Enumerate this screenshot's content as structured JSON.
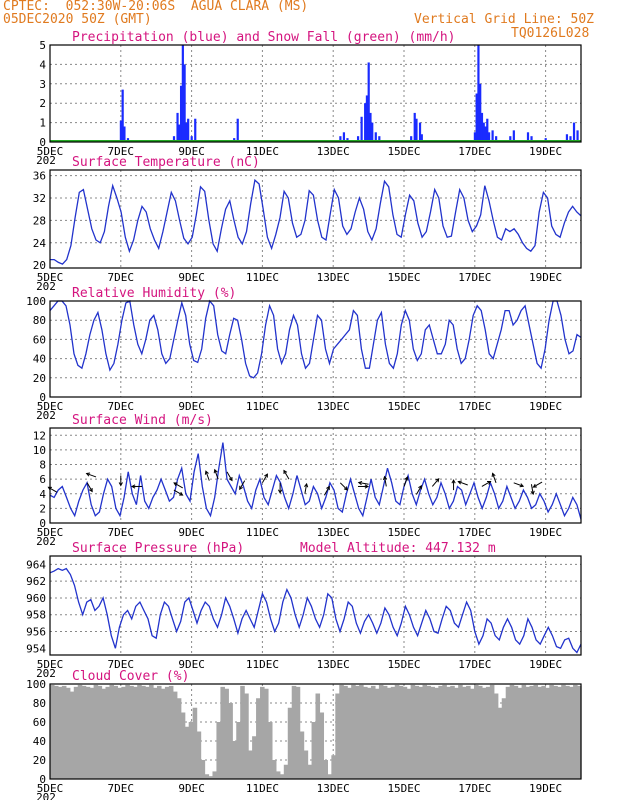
{
  "header": {
    "line1": "CPTEC:  052:30W-20:06S  AGUA CLARA (MS)",
    "line2": "05DEC2020 50Z (GMT)",
    "grid_note": "Vertical Grid Line: 50Z",
    "run_code": "TQ0126L028"
  },
  "x_tick_labels": [
    "5DEC",
    "7DEC",
    "9DEC",
    "11DEC",
    "13DEC",
    "15DEC",
    "17DEC",
    "19DEC"
  ],
  "year_stub": "202",
  "colors": {
    "header": "#e07a1f",
    "title": "#d4147f",
    "line": "#2233cc",
    "precip": "#1a2bff",
    "snow": "#22aa22",
    "cloud": "#a6a6a6",
    "grid": "#888888"
  },
  "chart_data": [
    {
      "type": "bar",
      "title": "Precipitation (blue) and Snow Fall (green) (mm/h)",
      "ylim": [
        0,
        5
      ],
      "yticks": [
        "0",
        "1",
        "2",
        "3",
        "4",
        "5"
      ],
      "bars": [
        [
          2.0,
          1.1
        ],
        [
          2.05,
          2.7
        ],
        [
          2.1,
          0.8
        ],
        [
          2.2,
          0.2
        ],
        [
          3.5,
          0.3
        ],
        [
          3.6,
          1.5
        ],
        [
          3.65,
          0.9
        ],
        [
          3.7,
          2.9
        ],
        [
          3.75,
          5.0
        ],
        [
          3.8,
          4.0
        ],
        [
          3.85,
          1.0
        ],
        [
          3.9,
          1.2
        ],
        [
          4.0,
          0.3
        ],
        [
          4.1,
          1.2
        ],
        [
          5.2,
          0.2
        ],
        [
          5.3,
          1.2
        ],
        [
          8.1,
          0.1
        ],
        [
          8.2,
          0.3
        ],
        [
          8.3,
          0.5
        ],
        [
          8.4,
          0.2
        ],
        [
          8.7,
          0.3
        ],
        [
          8.8,
          1.3
        ],
        [
          8.9,
          2.0
        ],
        [
          8.95,
          2.4
        ],
        [
          9.0,
          4.1
        ],
        [
          9.05,
          1.5
        ],
        [
          9.1,
          1.0
        ],
        [
          9.2,
          0.5
        ],
        [
          9.3,
          0.3
        ],
        [
          10.2,
          0.3
        ],
        [
          10.3,
          1.5
        ],
        [
          10.35,
          1.2
        ],
        [
          10.45,
          1.0
        ],
        [
          10.5,
          0.4
        ],
        [
          12.0,
          0.5
        ],
        [
          12.05,
          2.5
        ],
        [
          12.1,
          5.0
        ],
        [
          12.15,
          3.0
        ],
        [
          12.2,
          1.5
        ],
        [
          12.25,
          1.0
        ],
        [
          12.3,
          0.8
        ],
        [
          12.35,
          1.2
        ],
        [
          12.4,
          0.5
        ],
        [
          12.5,
          0.6
        ],
        [
          12.6,
          0.3
        ],
        [
          13.0,
          0.3
        ],
        [
          13.1,
          0.6
        ],
        [
          13.5,
          0.5
        ],
        [
          13.6,
          0.3
        ],
        [
          14.0,
          0.2
        ],
        [
          14.6,
          0.4
        ],
        [
          14.7,
          0.3
        ],
        [
          14.8,
          1.0
        ],
        [
          14.9,
          0.6
        ]
      ],
      "snow": 0
    },
    {
      "type": "line",
      "title": "Surface Temperature (nC)",
      "ylim": [
        19.5,
        37
      ],
      "yticks": [
        "20",
        "24",
        "28",
        "32",
        "36"
      ],
      "y": [
        21.0,
        21.0,
        20.5,
        20.2,
        21.0,
        23.5,
        28.5,
        33.0,
        33.5,
        30.0,
        26.5,
        24.5,
        24.0,
        26.0,
        30.5,
        34.2,
        32.0,
        29.5,
        25.0,
        22.5,
        24.5,
        28.0,
        30.5,
        29.5,
        26.5,
        24.5,
        23.0,
        26.0,
        29.5,
        33.0,
        31.5,
        28.0,
        24.8,
        23.8,
        25.0,
        29.0,
        34.0,
        33.2,
        28.0,
        23.8,
        22.5,
        26.5,
        30.0,
        31.5,
        28.0,
        25.0,
        23.8,
        26.0,
        31.0,
        35.2,
        34.5,
        30.0,
        25.0,
        23.0,
        25.5,
        28.5,
        33.2,
        32.0,
        27.5,
        25.0,
        25.5,
        28.0,
        33.3,
        32.5,
        28.0,
        25.0,
        24.5,
        29.0,
        33.5,
        32.0,
        27.0,
        25.5,
        26.5,
        29.5,
        32.0,
        30.0,
        26.0,
        24.5,
        26.5,
        31.0,
        35.0,
        34.0,
        29.0,
        25.5,
        25.0,
        29.0,
        32.5,
        31.5,
        27.5,
        25.0,
        26.0,
        29.5,
        33.5,
        32.0,
        27.0,
        25.0,
        25.2,
        29.5,
        33.5,
        32.0,
        28.0,
        26.0,
        27.0,
        29.0,
        34.2,
        31.5,
        28.0,
        25.0,
        24.5,
        26.5,
        26.0,
        26.5,
        25.5,
        24.0,
        23.0,
        22.5,
        23.5,
        29.5,
        33.0,
        32.0,
        27.0,
        25.5,
        25.0,
        27.5,
        29.5,
        30.5,
        29.5,
        28.8
      ]
    },
    {
      "type": "line",
      "title": "Relative Humidity (%)",
      "ylim": [
        0,
        100
      ],
      "yticks": [
        "0",
        "20",
        "40",
        "60",
        "80",
        "100"
      ],
      "y": [
        90,
        95,
        100,
        100,
        95,
        75,
        45,
        33,
        30,
        45,
        65,
        80,
        88,
        70,
        45,
        28,
        35,
        55,
        80,
        98,
        100,
        75,
        55,
        45,
        60,
        80,
        85,
        70,
        45,
        35,
        40,
        60,
        80,
        98,
        85,
        55,
        38,
        36,
        50,
        82,
        100,
        95,
        65,
        48,
        45,
        65,
        82,
        80,
        60,
        35,
        22,
        20,
        25,
        45,
        75,
        95,
        85,
        50,
        35,
        45,
        70,
        85,
        75,
        45,
        30,
        35,
        60,
        85,
        80,
        50,
        35,
        50,
        55,
        60,
        65,
        70,
        90,
        85,
        50,
        30,
        30,
        55,
        80,
        88,
        55,
        35,
        30,
        45,
        75,
        90,
        80,
        50,
        38,
        45,
        70,
        75,
        60,
        45,
        45,
        55,
        80,
        75,
        50,
        35,
        40,
        60,
        85,
        95,
        90,
        70,
        45,
        40,
        55,
        70,
        90,
        90,
        75,
        80,
        90,
        95,
        75,
        55,
        35,
        30,
        50,
        80,
        100,
        100,
        85,
        60,
        45,
        48,
        65,
        62
      ]
    },
    {
      "type": "line",
      "title": "Surface Wind (m/s)",
      "ylim": [
        0,
        13
      ],
      "yticks": [
        "0",
        "2",
        "4",
        "6",
        "8",
        "10",
        "12"
      ],
      "y": [
        3.8,
        3.5,
        4.5,
        5.0,
        3.5,
        2.0,
        1.0,
        3.0,
        4.5,
        5.5,
        2.5,
        1.0,
        1.5,
        4.0,
        6.0,
        5.0,
        2.0,
        1.0,
        3.5,
        7.0,
        4.0,
        2.5,
        6.5,
        3.0,
        2.0,
        3.5,
        4.5,
        6.0,
        4.5,
        3.0,
        3.5,
        6.0,
        7.5,
        4.0,
        3.0,
        7.0,
        9.5,
        5.0,
        2.0,
        1.0,
        3.5,
        7.5,
        11.0,
        6.0,
        5.0,
        4.0,
        6.5,
        5.0,
        3.0,
        2.0,
        4.5,
        6.0,
        3.5,
        2.5,
        4.5,
        6.5,
        5.5,
        3.5,
        2.0,
        4.0,
        6.5,
        4.5,
        2.5,
        3.0,
        5.0,
        4.0,
        2.0,
        3.5,
        5.5,
        4.5,
        2.0,
        1.5,
        4.0,
        6.0,
        4.0,
        2.0,
        1.0,
        3.5,
        6.0,
        3.5,
        2.5,
        5.0,
        7.5,
        5.5,
        3.0,
        2.5,
        5.0,
        6.5,
        4.0,
        2.5,
        4.5,
        6.0,
        4.0,
        2.5,
        3.5,
        5.5,
        4.0,
        2.0,
        3.0,
        5.0,
        4.5,
        2.5,
        4.0,
        5.5,
        3.5,
        2.0,
        3.5,
        5.5,
        4.0,
        2.0,
        3.0,
        5.0,
        3.5,
        2.0,
        3.0,
        4.5,
        3.5,
        2.0,
        2.5,
        4.0,
        3.0,
        1.5,
        2.5,
        4.0,
        2.5,
        1.0,
        2.0,
        3.5,
        2.5,
        0.5
      ],
      "arrows": [
        [
          0.2,
          4.2,
          210
        ],
        [
          1.05,
          5.5,
          60
        ],
        [
          1.3,
          6.3,
          200
        ],
        [
          2.0,
          6.5,
          90
        ],
        [
          2.6,
          5.0,
          180
        ],
        [
          3.5,
          4.5,
          30
        ],
        [
          3.75,
          4.8,
          210
        ],
        [
          4.5,
          5.8,
          250
        ],
        [
          4.75,
          6.0,
          250
        ],
        [
          5.0,
          7.0,
          60
        ],
        [
          5.5,
          5.8,
          120
        ],
        [
          6.0,
          5.5,
          300
        ],
        [
          6.5,
          5.5,
          90
        ],
        [
          6.75,
          6.0,
          240
        ],
        [
          7.2,
          4.0,
          280
        ],
        [
          7.75,
          3.8,
          300
        ],
        [
          8.2,
          5.5,
          45
        ],
        [
          8.7,
          5.0,
          0
        ],
        [
          9.0,
          5.3,
          190
        ],
        [
          9.5,
          5.0,
          260
        ],
        [
          10.0,
          5.0,
          290
        ],
        [
          10.35,
          3.9,
          300
        ],
        [
          10.8,
          5.0,
          310
        ],
        [
          11.4,
          4.5,
          270
        ],
        [
          11.8,
          5.2,
          200
        ],
        [
          12.2,
          5.0,
          330
        ],
        [
          12.6,
          5.5,
          250
        ],
        [
          13.1,
          5.5,
          20
        ],
        [
          13.6,
          5.3,
          80
        ],
        [
          13.9,
          5.6,
          150
        ]
      ]
    },
    {
      "type": "line",
      "title": "Surface Pressure (hPa)",
      "annotation": "Model Altitude: 447.132 m",
      "ylim": [
        953.2,
        965
      ],
      "yticks": [
        "954",
        "956",
        "958",
        "960",
        "962",
        "964"
      ],
      "y": [
        963.0,
        963.2,
        963.5,
        963.3,
        963.5,
        962.8,
        961.5,
        959.5,
        958.0,
        959.5,
        959.8,
        958.5,
        959.0,
        960.0,
        958.0,
        955.5,
        954.0,
        956.5,
        958.0,
        958.5,
        957.5,
        959.0,
        959.5,
        958.5,
        957.5,
        955.5,
        955.2,
        958.0,
        959.5,
        959.0,
        957.5,
        956.0,
        957.2,
        959.5,
        960.0,
        958.5,
        957.0,
        958.5,
        959.5,
        959.0,
        957.5,
        956.5,
        958.0,
        960.0,
        959.0,
        957.5,
        955.8,
        957.5,
        958.5,
        957.5,
        956.5,
        958.5,
        960.5,
        959.5,
        957.5,
        956.0,
        957.0,
        959.5,
        961.0,
        960.0,
        958.0,
        956.5,
        958.0,
        960.0,
        959.0,
        957.5,
        956.5,
        958.0,
        960.5,
        960.0,
        957.5,
        956.0,
        957.5,
        959.5,
        959.0,
        957.0,
        955.8,
        957.2,
        958.0,
        957.0,
        955.8,
        957.0,
        958.8,
        958.0,
        956.5,
        955.5,
        957.0,
        959.0,
        958.0,
        956.5,
        955.5,
        957.0,
        958.5,
        957.5,
        956.0,
        955.8,
        957.5,
        959.0,
        958.5,
        957.0,
        956.5,
        958.0,
        959.5,
        958.5,
        956.0,
        954.5,
        955.5,
        957.5,
        957.0,
        955.5,
        955.0,
        956.5,
        957.5,
        956.5,
        955.0,
        954.5,
        955.5,
        957.5,
        956.5,
        955.0,
        954.5,
        955.5,
        956.5,
        955.5,
        954.2,
        954.0,
        955.0,
        955.2,
        954.0,
        953.5,
        954.5
      ]
    },
    {
      "type": "area",
      "title": "Cloud Cover (%)",
      "ylim": [
        0,
        100
      ],
      "yticks": [
        "0",
        "20",
        "40",
        "60",
        "80",
        "100"
      ],
      "y": [
        99,
        98,
        97,
        98,
        96,
        92,
        97,
        99,
        98,
        97,
        96,
        99,
        98,
        95,
        97,
        99,
        98,
        96,
        97,
        99,
        98,
        97,
        99,
        98,
        97,
        99,
        96,
        98,
        95,
        97,
        98,
        92,
        85,
        70,
        55,
        60,
        75,
        50,
        20,
        5,
        3,
        8,
        60,
        97,
        95,
        80,
        40,
        60,
        98,
        90,
        30,
        45,
        85,
        97,
        95,
        60,
        20,
        8,
        5,
        15,
        75,
        98,
        97,
        50,
        30,
        15,
        60,
        90,
        70,
        20,
        5,
        25,
        90,
        99,
        98,
        96,
        99,
        98,
        99,
        97,
        96,
        98,
        95,
        99,
        98,
        96,
        97,
        99,
        98,
        97,
        95,
        99,
        98,
        97,
        99,
        98,
        97,
        96,
        98,
        99,
        97,
        98,
        96,
        99,
        97,
        98,
        95,
        99,
        98,
        96,
        97,
        99,
        90,
        75,
        85,
        97,
        99,
        98,
        96,
        99,
        97,
        98,
        99,
        97,
        98,
        96,
        99,
        98,
        97,
        99,
        98,
        97,
        99,
        98
      ]
    }
  ]
}
